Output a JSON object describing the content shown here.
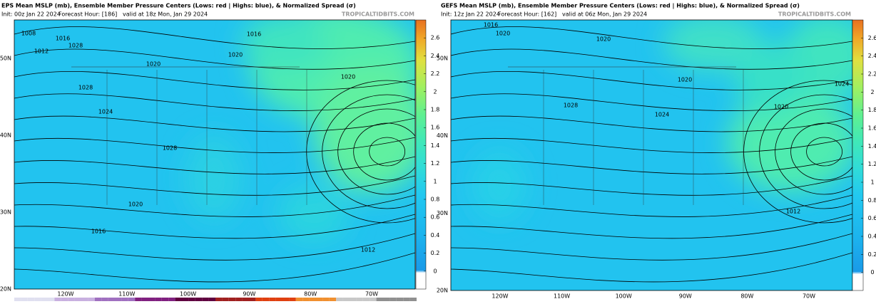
{
  "panels": [
    {
      "title": "EPS Mean MSLP (mb), Ensemble Member Pressure Centers (Lows: red | Highs: blue), & Normalized Spread (σ)",
      "init": "Init: 00z Jan 22 2024",
      "forecast_hour": "Forecast Hour: [186]",
      "valid": "valid at 18z Mon, Jan 29 2024",
      "watermark": "TROPICALTIDBITS.COM",
      "colorbar_lim": [
        -0.2,
        2.8
      ],
      "colorbar_ticks": [
        0,
        0.2,
        0.4,
        0.6,
        0.8,
        1,
        1.2,
        1.4,
        1.6,
        1.8,
        2,
        2.2,
        2.4,
        2.6
      ],
      "lat_labels": [
        "50N",
        "40N",
        "30N",
        "20N"
      ],
      "lon_labels": [
        "120W",
        "110W",
        "100W",
        "90W",
        "80W",
        "70W"
      ],
      "isobar_labels": [
        "1008",
        "1016",
        "1012",
        "1028",
        "1016",
        "1020",
        "1020",
        "1020",
        "1024",
        "1028",
        "1028",
        "1020",
        "1016",
        "1012"
      ]
    },
    {
      "title": "GEFS Mean MSLP (mb), Ensemble Member Pressure Centers (Lows: red | Highs: blue), & Normalized Spread (σ)",
      "init": "Init: 12z Jan 22 2024",
      "forecast_hour": "Forecast Hour: [162]",
      "valid": "valid at 06z Mon, Jan 29 2024",
      "watermark": "TROPICALTIDBITS.COM",
      "colorbar_lim": [
        -0.2,
        2.8
      ],
      "colorbar_ticks": [
        0,
        0.2,
        0.4,
        0.6,
        0.8,
        1,
        1.2,
        1.4,
        1.6,
        1.8,
        2,
        2.2,
        2.4,
        2.6
      ],
      "lat_labels": [
        "50N",
        "40N",
        "30N",
        "20N"
      ],
      "lon_labels": [
        "120W",
        "110W",
        "100W",
        "90W",
        "80W",
        "70W"
      ],
      "isobar_labels": [
        "1016",
        "1020",
        "1020",
        "1028",
        "1024",
        "1020",
        "1024",
        "1020",
        "1012"
      ]
    }
  ]
}
